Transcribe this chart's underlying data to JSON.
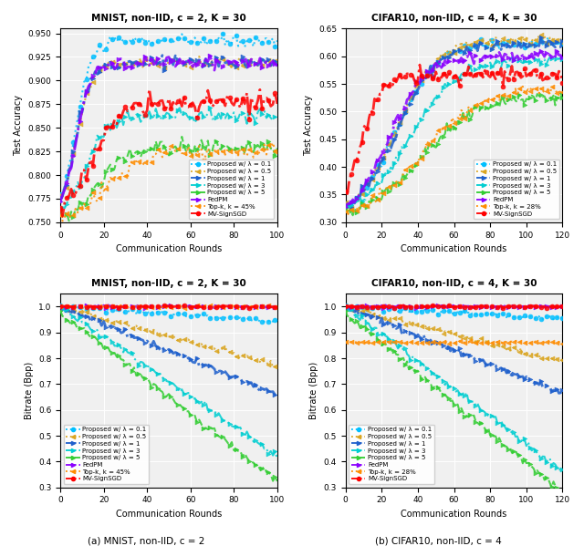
{
  "subplot_titles": [
    "MNIST, non-IID, c = 2, K = 30",
    "CIFAR10, non-IID, c = 4, K = 30",
    "MNIST, non-IID, c = 2, K = 30",
    "CIFAR10, non-IID, c = 4, K = 30"
  ],
  "caption": [
    "(a) MNIST, non-IID, c = 2",
    "(b) CIFAR10, non-IID, c = 4"
  ],
  "legend_labels": [
    "Proposed w/ λ = 0.1",
    "Proposed w/ λ = 0.5",
    "Proposed w/ λ = 1",
    "Proposed w/ λ = 3",
    "Proposed w/ λ = 5",
    "FedPM",
    "Top-k, k = 45%",
    "MV-SignSGD"
  ],
  "legend_labels_cifar": [
    "Proposed w/ λ = 0.1",
    "Proposed w/ λ = 0.5",
    "Proposed w/ λ = 1",
    "Proposed w/ λ = 3",
    "Proposed w/ λ = 5",
    "FedPM",
    "Top-k, k = 28%",
    "MV-SignSGD"
  ],
  "colors": [
    "#00BFFF",
    "#DAA520",
    "#1E5FCC",
    "#00CED1",
    "#32CD32",
    "#8B00FF",
    "#FF8C00",
    "#FF0000"
  ],
  "bg_color": "#f0f0f0"
}
